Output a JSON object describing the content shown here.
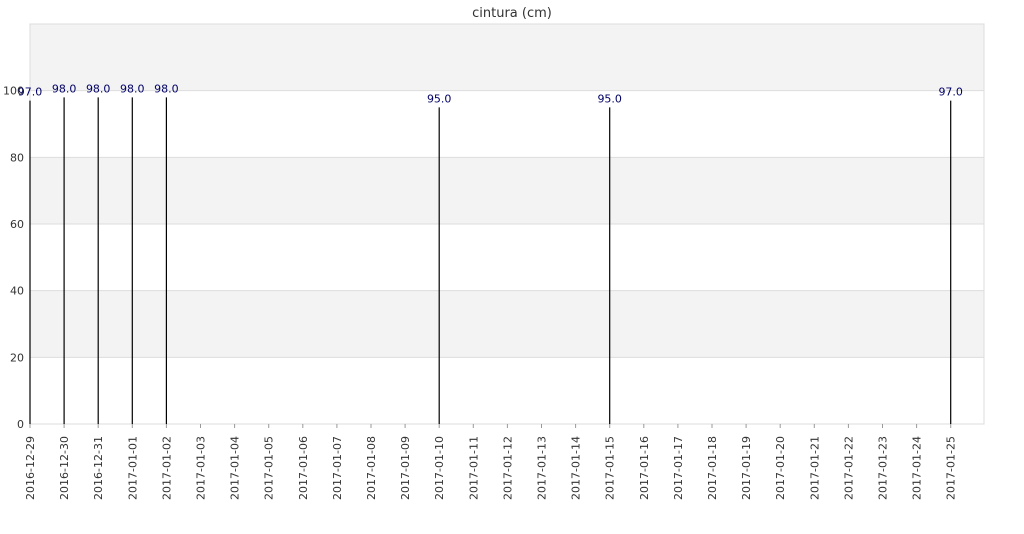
{
  "chart_data": {
    "type": "bar",
    "title": "cintura (cm)",
    "xlabel": "",
    "ylabel": "",
    "ylim": [
      0,
      120
    ],
    "yticks": [
      0,
      20,
      40,
      60,
      80,
      100
    ],
    "grid": "alternating horizontal bands",
    "x_dates": [
      "2016-12-29",
      "2016-12-30",
      "2016-12-31",
      "2017-01-01",
      "2017-01-02",
      "2017-01-03",
      "2017-01-04",
      "2017-01-05",
      "2017-01-06",
      "2017-01-07",
      "2017-01-08",
      "2017-01-09",
      "2017-01-10",
      "2017-01-11",
      "2017-01-12",
      "2017-01-13",
      "2017-01-14",
      "2017-01-15",
      "2017-01-16",
      "2017-01-17",
      "2017-01-18",
      "2017-01-19",
      "2017-01-20",
      "2017-01-21",
      "2017-01-22",
      "2017-01-23",
      "2017-01-24",
      "2017-01-25"
    ],
    "points": [
      {
        "x": "2016-12-29",
        "y": 97.0,
        "label": "97.0"
      },
      {
        "x": "2016-12-30",
        "y": 98.0,
        "label": "98.0"
      },
      {
        "x": "2016-12-31",
        "y": 98.0,
        "label": "98.0"
      },
      {
        "x": "2017-01-01",
        "y": 98.0,
        "label": "98.0"
      },
      {
        "x": "2017-01-02",
        "y": 98.0,
        "label": "98.0"
      },
      {
        "x": "2017-01-10",
        "y": 95.0,
        "label": "95.0"
      },
      {
        "x": "2017-01-15",
        "y": 95.0,
        "label": "95.0"
      },
      {
        "x": "2017-01-25",
        "y": 97.0,
        "label": "97.0"
      }
    ],
    "colors": {
      "bar": "#000000",
      "label": "#000066",
      "band": "#f3f3f3",
      "gridline": "#dddddd",
      "axis": "#999999"
    }
  }
}
